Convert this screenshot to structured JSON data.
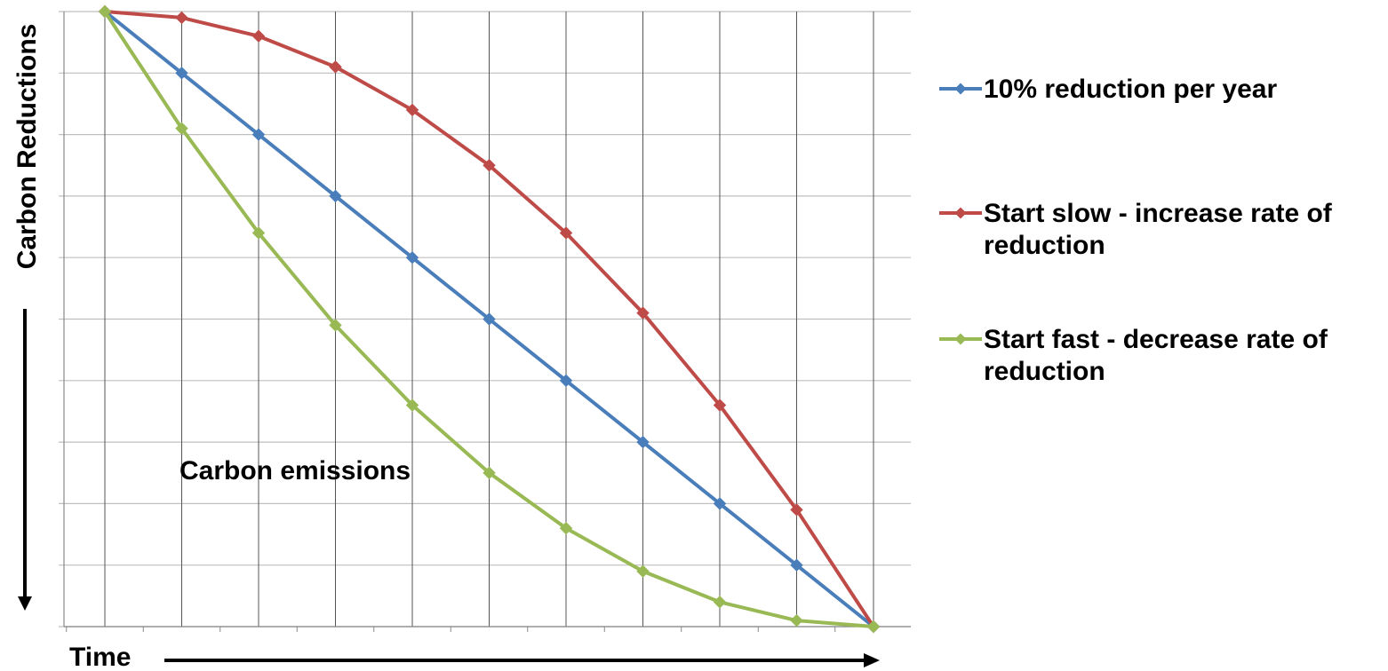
{
  "chart_data": {
    "type": "line",
    "title": "",
    "xlabel": "Time",
    "ylabel": "Carbon Reductions",
    "annotation": "Carbon emissions",
    "x": [
      0,
      1,
      2,
      3,
      4,
      5,
      6,
      7,
      8,
      9,
      10
    ],
    "ylim": [
      0,
      100
    ],
    "grid": true,
    "legend_position": "right",
    "series": [
      {
        "name": "10% reduction per year",
        "color": "#4a7ebb",
        "values": [
          100,
          90,
          80,
          70,
          60,
          50,
          40,
          30,
          20,
          10,
          0
        ]
      },
      {
        "name": "Start slow - increase rate of reduction",
        "color": "#be4b48",
        "values": [
          100,
          99,
          96,
          91,
          84,
          75,
          64,
          51,
          36,
          19,
          0
        ]
      },
      {
        "name": "Start fast - decrease rate of reduction",
        "color": "#98b954",
        "values": [
          100,
          81,
          64,
          49,
          36,
          25,
          16,
          9,
          4,
          1,
          0
        ]
      }
    ]
  }
}
